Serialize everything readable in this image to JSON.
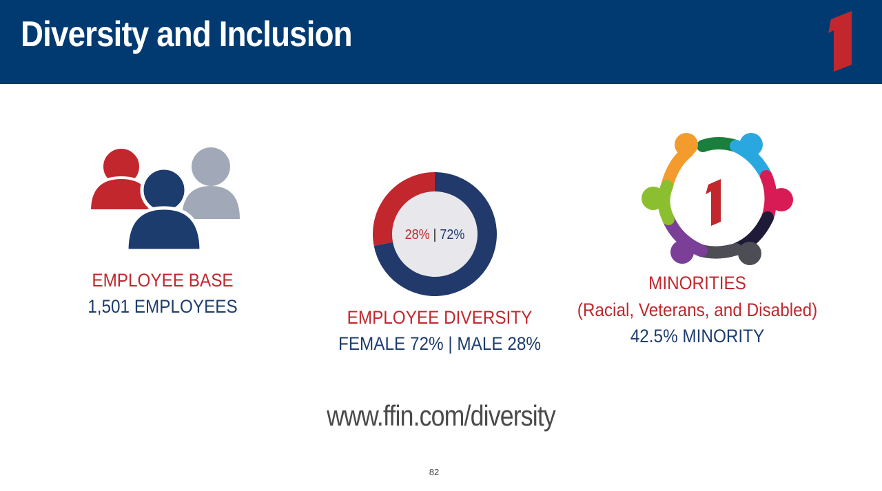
{
  "header": {
    "title": "Diversity and Inclusion",
    "logo_icon": "first-financial-1-logo-icon",
    "background_color": "#003a70"
  },
  "employee_base": {
    "icon": "people-group-icon",
    "label": "EMPLOYEE BASE",
    "value": "1,501 EMPLOYEES"
  },
  "employee_diversity": {
    "icon": "donut-chart-icon",
    "male_pct_label": "28%",
    "separator": " | ",
    "female_pct_label": "72%",
    "label": "EMPLOYEE DIVERSITY",
    "value": "FEMALE 72% | MALE 28%"
  },
  "minorities": {
    "icon": "diverse-community-ring-icon",
    "label": "MINORITIES",
    "sublabel": "(Racial, Veterans, and Disabled)",
    "value": "42.5% MINORITY"
  },
  "chart_data": {
    "type": "pie",
    "categories": [
      "Male",
      "Female"
    ],
    "values": [
      28,
      72
    ],
    "colors": [
      "#c1272d",
      "#213a6b"
    ],
    "title": ""
  },
  "footer": {
    "url": "www.ffin.com/diversity",
    "page_number": "82"
  },
  "colors": {
    "accent_red": "#c1272d",
    "navy": "#1d3c6e",
    "header_blue": "#003a70"
  }
}
